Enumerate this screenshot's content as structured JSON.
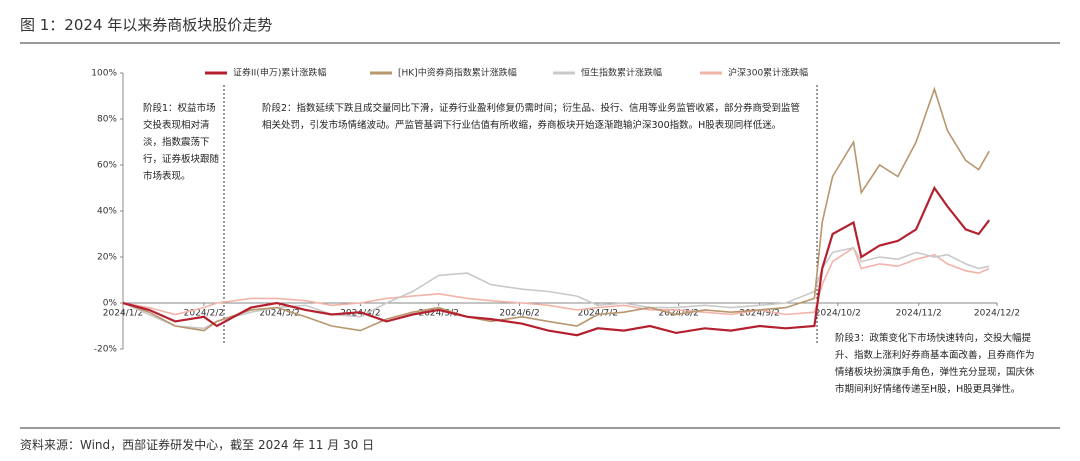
{
  "header": {
    "title": "图 1：2024 年以来券商板块股价走势",
    "source": "资料来源：Wind，西部证券研发中心，截至 2024 年 11 月 30 日"
  },
  "chart_data": {
    "type": "line",
    "x": [
      "2024/1/2",
      "2024/1/12",
      "2024/1/22",
      "2024/2/2",
      "2024/2/7",
      "2024/2/20",
      "2024/3/1",
      "2024/3/12",
      "2024/3/22",
      "2024/4/2",
      "2024/4/12",
      "2024/4/22",
      "2024/5/2",
      "2024/5/13",
      "2024/5/22",
      "2024/6/3",
      "2024/6/13",
      "2024/6/24",
      "2024/7/2",
      "2024/7/12",
      "2024/7/22",
      "2024/8/1",
      "2024/8/12",
      "2024/8/22",
      "2024/9/2",
      "2024/9/12",
      "2024/9/23",
      "2024/9/26",
      "2024/9/30",
      "2024/10/8",
      "2024/10/11",
      "2024/10/18",
      "2024/10/25",
      "2024/11/1",
      "2024/11/8",
      "2024/11/13",
      "2024/11/20",
      "2024/11/25",
      "2024/11/29"
    ],
    "series": [
      {
        "name": "证券II(申万)累计涨跌幅",
        "color": "#b5202f",
        "values": [
          0,
          -3,
          -8,
          -6,
          -10,
          -2,
          0,
          -3,
          -5,
          -4,
          -8,
          -5,
          -3,
          -6,
          -7,
          -9,
          -12,
          -14,
          -11,
          -12,
          -10,
          -13,
          -11,
          -12,
          -10,
          -11,
          -10,
          15,
          30,
          35,
          20,
          25,
          27,
          32,
          50,
          42,
          32,
          30,
          36
        ]
      },
      {
        "name": "[HK]中资券商指数累计涨跌幅",
        "color": "#b8966e",
        "values": [
          0,
          -4,
          -10,
          -12,
          -8,
          -3,
          -2,
          -6,
          -10,
          -12,
          -7,
          -4,
          -2,
          -6,
          -8,
          -6,
          -8,
          -10,
          -5,
          -4,
          -2,
          -5,
          -3,
          -4,
          -3,
          -2,
          2,
          35,
          55,
          70,
          48,
          60,
          55,
          70,
          93,
          75,
          62,
          58,
          66
        ]
      },
      {
        "name": "恒生指数累计涨跌幅",
        "color": "#c9c9c9",
        "values": [
          0,
          -5,
          -10,
          -11,
          -8,
          -4,
          -2,
          -1,
          -5,
          -6,
          0,
          5,
          12,
          13,
          8,
          6,
          5,
          3,
          -1,
          0,
          -2,
          -2,
          -1,
          -2,
          -1,
          0,
          5,
          15,
          22,
          24,
          18,
          20,
          19,
          22,
          20,
          21,
          17,
          15,
          16
        ]
      },
      {
        "name": "沪深300累计涨跌幅",
        "color": "#f2b3a8",
        "values": [
          0,
          -2,
          -5,
          -2,
          0,
          2,
          2,
          1,
          -1,
          0,
          2,
          3,
          4,
          2,
          1,
          0,
          -1,
          -3,
          -2,
          -1,
          -3,
          -3,
          -4,
          -5,
          -3,
          -5,
          -4,
          8,
          18,
          24,
          15,
          17,
          16,
          19,
          21,
          17,
          14,
          13,
          15
        ]
      }
    ],
    "xlim": [
      "2024/1/2",
      "2024/12/2"
    ],
    "xticks": [
      "2024/1/2",
      "2024/2/2",
      "2024/3/2",
      "2024/4/2",
      "2024/5/2",
      "2024/6/2",
      "2024/7/2",
      "2024/8/2",
      "2024/9/2",
      "2024/10/2",
      "2024/11/2",
      "2024/12/2"
    ],
    "ylim": [
      -20,
      100
    ],
    "yticks": [
      {
        "value": -20,
        "label": "-20%"
      },
      {
        "value": 0,
        "label": "0%"
      },
      {
        "value": 20,
        "label": "20%"
      },
      {
        "value": 40,
        "label": "40%"
      },
      {
        "value": 60,
        "label": "60%"
      },
      {
        "value": 80,
        "label": "80%"
      },
      {
        "value": 100,
        "label": "100%"
      }
    ],
    "annotations": [
      "阶段1：权益市场交投表现相对清淡，指数震荡下行，证券板块跟随市场表现。",
      "阶段2：指数延续下跌且成交量同比下滑，证券行业盈利修复仍需时间；衍生品、投行、信用等业务监管收紧，部分券商受到监管相关处罚，引发市场情绪波动。严监管基调下行业估值有所收缩，券商板块开始逐渐跑输沪深300指数。H股表现同样低迷。",
      "阶段3：政策变化下市场快速转向，交投大幅提升、指数上涨利好券商基本面改善，且券商作为情绪板块扮演旗手角色，弹性充分显现，国庆休市期间利好情绪传递至H股，H股更具弹性。"
    ]
  }
}
